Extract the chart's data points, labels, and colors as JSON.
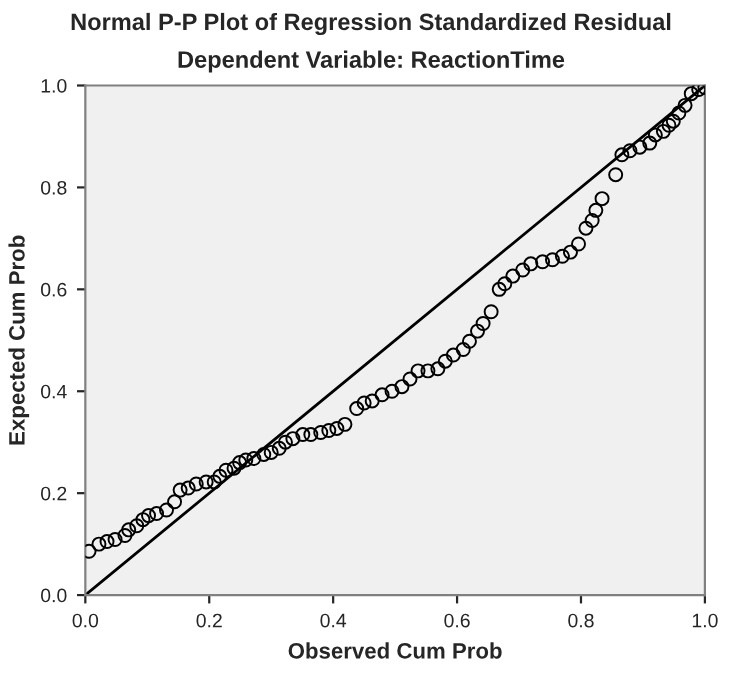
{
  "chart_data": {
    "type": "scatter",
    "title": "Normal P-P Plot of Regression Standardized Residual",
    "subtitle": "Dependent Variable: ReactionTime",
    "xlabel": "Observed Cum Prob",
    "ylabel": "Expected Cum Prob",
    "xlim": [
      0,
      1
    ],
    "ylim": [
      0,
      1
    ],
    "xticks": [
      {
        "value": 0,
        "label": "0.0"
      },
      {
        "value": 0.2,
        "label": "0.2"
      },
      {
        "value": 0.4,
        "label": "0.4"
      },
      {
        "value": 0.6,
        "label": "0.6"
      },
      {
        "value": 0.8,
        "label": "0.8"
      },
      {
        "value": 1,
        "label": "1.0"
      }
    ],
    "yticks": [
      {
        "value": 0,
        "label": "0.0"
      },
      {
        "value": 0.2,
        "label": "0.2"
      },
      {
        "value": 0.4,
        "label": "0.4"
      },
      {
        "value": 0.6,
        "label": "0.6"
      },
      {
        "value": 0.8,
        "label": "0.8"
      },
      {
        "value": 1,
        "label": "1.0"
      }
    ],
    "grid": false,
    "legend": false,
    "series": [
      {
        "marker": "circle",
        "color": "#000000",
        "x": [
          0.006,
          0.022,
          0.035,
          0.048,
          0.064,
          0.07,
          0.083,
          0.093,
          0.102,
          0.115,
          0.131,
          0.144,
          0.153,
          0.166,
          0.179,
          0.195,
          0.208,
          0.217,
          0.227,
          0.24,
          0.249,
          0.259,
          0.272,
          0.288,
          0.3,
          0.313,
          0.323,
          0.335,
          0.351,
          0.364,
          0.38,
          0.393,
          0.406,
          0.419,
          0.438,
          0.45,
          0.463,
          0.479,
          0.495,
          0.511,
          0.524,
          0.537,
          0.553,
          0.569,
          0.581,
          0.594,
          0.61,
          0.62,
          0.633,
          0.642,
          0.655,
          0.668,
          0.677,
          0.69,
          0.706,
          0.719,
          0.738,
          0.754,
          0.77,
          0.783,
          0.796,
          0.808,
          0.818,
          0.824,
          0.834,
          0.856,
          0.866,
          0.879,
          0.895,
          0.911,
          0.92,
          0.933,
          0.942,
          0.949,
          0.958,
          0.968,
          0.978,
          0.99,
          1.0
        ],
        "values": [
          0.086,
          0.1,
          0.105,
          0.109,
          0.117,
          0.128,
          0.136,
          0.148,
          0.156,
          0.16,
          0.167,
          0.183,
          0.206,
          0.21,
          0.218,
          0.222,
          0.222,
          0.233,
          0.245,
          0.249,
          0.26,
          0.265,
          0.268,
          0.276,
          0.28,
          0.288,
          0.3,
          0.307,
          0.315,
          0.315,
          0.319,
          0.323,
          0.327,
          0.335,
          0.366,
          0.377,
          0.381,
          0.393,
          0.4,
          0.409,
          0.424,
          0.44,
          0.44,
          0.444,
          0.459,
          0.471,
          0.482,
          0.498,
          0.518,
          0.533,
          0.556,
          0.6,
          0.611,
          0.626,
          0.638,
          0.65,
          0.654,
          0.658,
          0.665,
          0.673,
          0.689,
          0.72,
          0.735,
          0.755,
          0.778,
          0.825,
          0.864,
          0.872,
          0.879,
          0.887,
          0.903,
          0.91,
          0.922,
          0.93,
          0.946,
          0.961,
          0.984,
          0.992,
          0.996
        ]
      },
      {
        "type": "line",
        "marker": "none",
        "line_style": "solid",
        "color": "#000000",
        "x": [
          0,
          1
        ],
        "values": [
          0,
          1
        ]
      }
    ]
  }
}
